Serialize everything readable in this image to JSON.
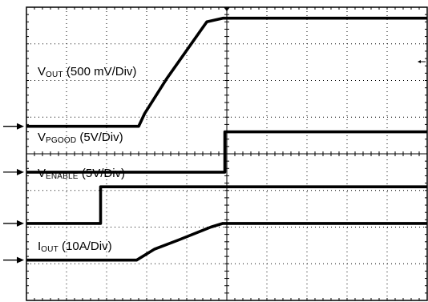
{
  "chart_data": {
    "type": "line",
    "title": "",
    "grid": true,
    "x_divisions": 10,
    "y_divisions": 8,
    "grid_color": "#000000",
    "trace_color": "#000000",
    "background": "#ffffff",
    "series": [
      {
        "label_main": "V",
        "label_sub": "OUT",
        "label_rest": " (500 mV/Div)",
        "baseline_div": 4.75,
        "marker": "right-arrow",
        "points": [
          [
            0,
            4.75
          ],
          [
            2.8,
            4.75
          ],
          [
            2.95,
            5.1
          ],
          [
            3.5,
            6.05
          ],
          [
            4.5,
            7.6
          ],
          [
            4.9,
            7.7
          ],
          [
            10,
            7.7
          ]
        ]
      },
      {
        "label_main": "V",
        "label_sub": "PGOOD",
        "label_rest": " (5V/Div)",
        "baseline_div": 3.5,
        "marker": "right-arrow",
        "points": [
          [
            0,
            3.5
          ],
          [
            4.95,
            3.5
          ],
          [
            4.95,
            4.6
          ],
          [
            10,
            4.6
          ]
        ]
      },
      {
        "label_main": "V",
        "label_sub": "ENABLE",
        "label_rest": " (5V/Div)",
        "baseline_div": 2.1,
        "marker": "right-arrow",
        "points": [
          [
            0,
            2.1
          ],
          [
            1.85,
            2.1
          ],
          [
            1.85,
            3.1
          ],
          [
            10,
            3.1
          ]
        ]
      },
      {
        "label_main": "I",
        "label_sub": "OUT",
        "label_rest": " (10A/Div)",
        "baseline_div": 1.1,
        "marker": "right-arrow",
        "points": [
          [
            0,
            1.1
          ],
          [
            2.75,
            1.1
          ],
          [
            3.2,
            1.4
          ],
          [
            3.8,
            1.65
          ],
          [
            4.6,
            2.0
          ],
          [
            4.9,
            2.1
          ],
          [
            10,
            2.1
          ]
        ]
      }
    ]
  }
}
